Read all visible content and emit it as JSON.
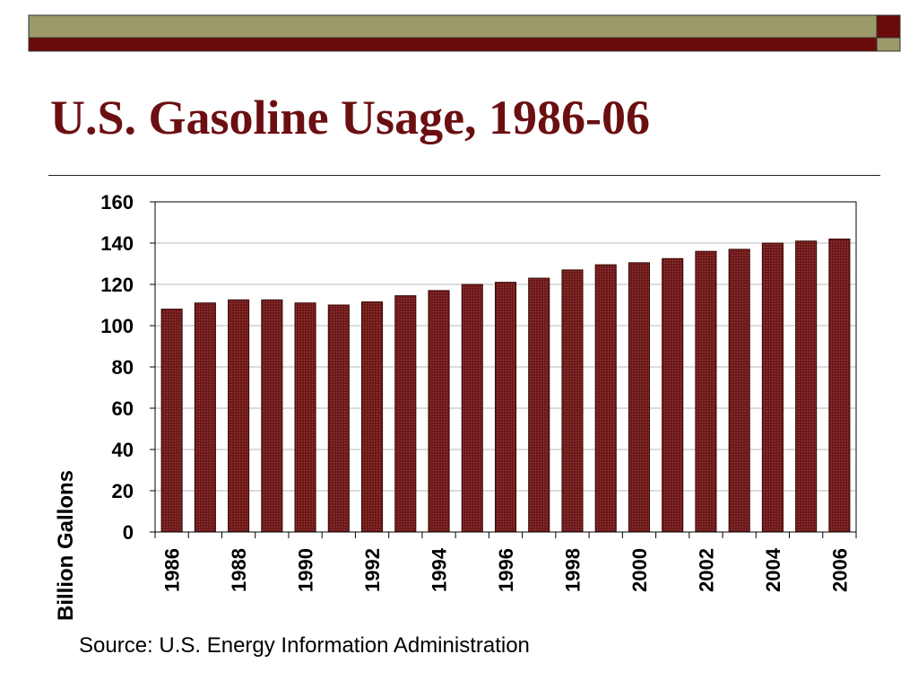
{
  "slide": {
    "title": "U.S. Gasoline Usage, 1986-06",
    "source": "Source: U.S. Energy Information Administration"
  },
  "colors": {
    "title": "#6b0f12",
    "bar": "#6f1a1a",
    "bar_border": "#3a0505",
    "olive_band": "#9c9a6a",
    "maroon_band": "#6b0a0a"
  },
  "chart_data": {
    "type": "bar",
    "ylabel": "Billion Gallons",
    "ylim": [
      0,
      160
    ],
    "yticks": [
      0,
      20,
      40,
      60,
      80,
      100,
      120,
      140,
      160
    ],
    "grid": true,
    "categories": [
      "1986",
      "1987",
      "1988",
      "1989",
      "1990",
      "1991",
      "1992",
      "1993",
      "1994",
      "1995",
      "1996",
      "1997",
      "1998",
      "1999",
      "2000",
      "2001",
      "2002",
      "2003",
      "2004",
      "2005",
      "2006"
    ],
    "x_tick_labels": [
      "1986",
      "1988",
      "1990",
      "1992",
      "1994",
      "1996",
      "1998",
      "2000",
      "2002",
      "2004",
      "2006"
    ],
    "values": [
      108,
      111,
      112.5,
      112.5,
      111,
      110,
      111.5,
      114.5,
      117,
      120,
      121,
      123,
      127,
      129.5,
      130.5,
      132.5,
      136,
      137,
      140,
      141,
      142
    ]
  }
}
